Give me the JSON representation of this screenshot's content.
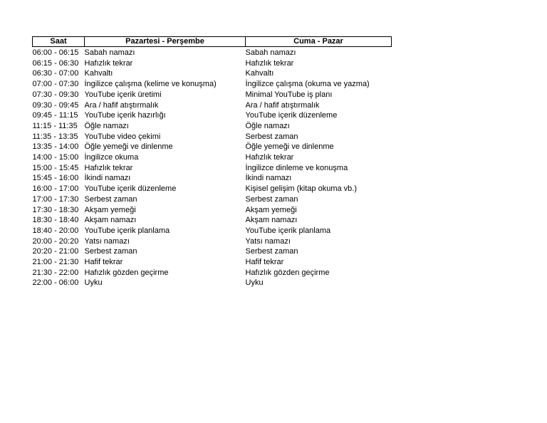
{
  "table": {
    "headers": [
      "Saat",
      "Pazartesi - Perşembe",
      "Cuma - Pazar"
    ],
    "rows": [
      {
        "time": "06:00 - 06:15",
        "weekday": "Sabah namazı",
        "weekend": "Sabah namazı"
      },
      {
        "time": "06:15 - 06:30",
        "weekday": "Hafızlık tekrar",
        "weekend": "Hafızlık tekrar"
      },
      {
        "time": "06:30 - 07:00",
        "weekday": "Kahvaltı",
        "weekend": "Kahvaltı"
      },
      {
        "time": "07:00 - 07:30",
        "weekday": "İngilizce çalışma (kelime ve konuşma)",
        "weekend": "İngilizce çalışma (okuma ve yazma)"
      },
      {
        "time": "07:30 - 09:30",
        "weekday": "YouTube içerik üretimi",
        "weekend": "Minimal YouTube iş planı"
      },
      {
        "time": "09:30 - 09:45",
        "weekday": "Ara / hafif atıştırmalık",
        "weekend": "Ara / hafif atıştırmalık"
      },
      {
        "time": "09:45 - 11:15",
        "weekday": "YouTube içerik hazırlığı",
        "weekend": "YouTube içerik düzenleme"
      },
      {
        "time": "11:15 - 11:35",
        "weekday": "Öğle namazı",
        "weekend": "Öğle namazı"
      },
      {
        "time": "11:35 - 13:35",
        "weekday": "YouTube video çekimi",
        "weekend": "Serbest zaman"
      },
      {
        "time": "13:35 - 14:00",
        "weekday": "Öğle yemeği ve dinlenme",
        "weekend": "Öğle yemeği ve dinlenme"
      },
      {
        "time": "14:00 - 15:00",
        "weekday": "İngilizce okuma",
        "weekend": "Hafızlık tekrar"
      },
      {
        "time": "15:00 - 15:45",
        "weekday": "Hafızlık tekrar",
        "weekend": "İngilizce dinleme ve konuşma"
      },
      {
        "time": "15:45 - 16:00",
        "weekday": "İkindi namazı",
        "weekend": "İkindi namazı"
      },
      {
        "time": "16:00 - 17:00",
        "weekday": "YouTube içerik düzenleme",
        "weekend": "Kişisel gelişim (kitap okuma vb.)"
      },
      {
        "time": "17:00 - 17:30",
        "weekday": "Serbest zaman",
        "weekend": "Serbest zaman"
      },
      {
        "time": "17:30 - 18:30",
        "weekday": "Akşam yemeği",
        "weekend": "Akşam yemeği"
      },
      {
        "time": "18:30 - 18:40",
        "weekday": "Akşam namazı",
        "weekend": "Akşam namazı"
      },
      {
        "time": "18:40 - 20:00",
        "weekday": "YouTube içerik planlama",
        "weekend": "YouTube içerik planlama"
      },
      {
        "time": "20:00 - 20:20",
        "weekday": "Yatsı namazı",
        "weekend": "Yatsı namazı"
      },
      {
        "time": "20:20 - 21:00",
        "weekday": "Serbest zaman",
        "weekend": "Serbest zaman"
      },
      {
        "time": "21:00 - 21:30",
        "weekday": "Hafif tekrar",
        "weekend": "Hafif tekrar"
      },
      {
        "time": "21:30 - 22:00",
        "weekday": "Hafızlık gözden geçirme",
        "weekend": "Hafızlık gözden geçirme"
      },
      {
        "time": "22:00 - 06:00",
        "weekday": "Uyku",
        "weekend": "Uyku"
      }
    ]
  }
}
